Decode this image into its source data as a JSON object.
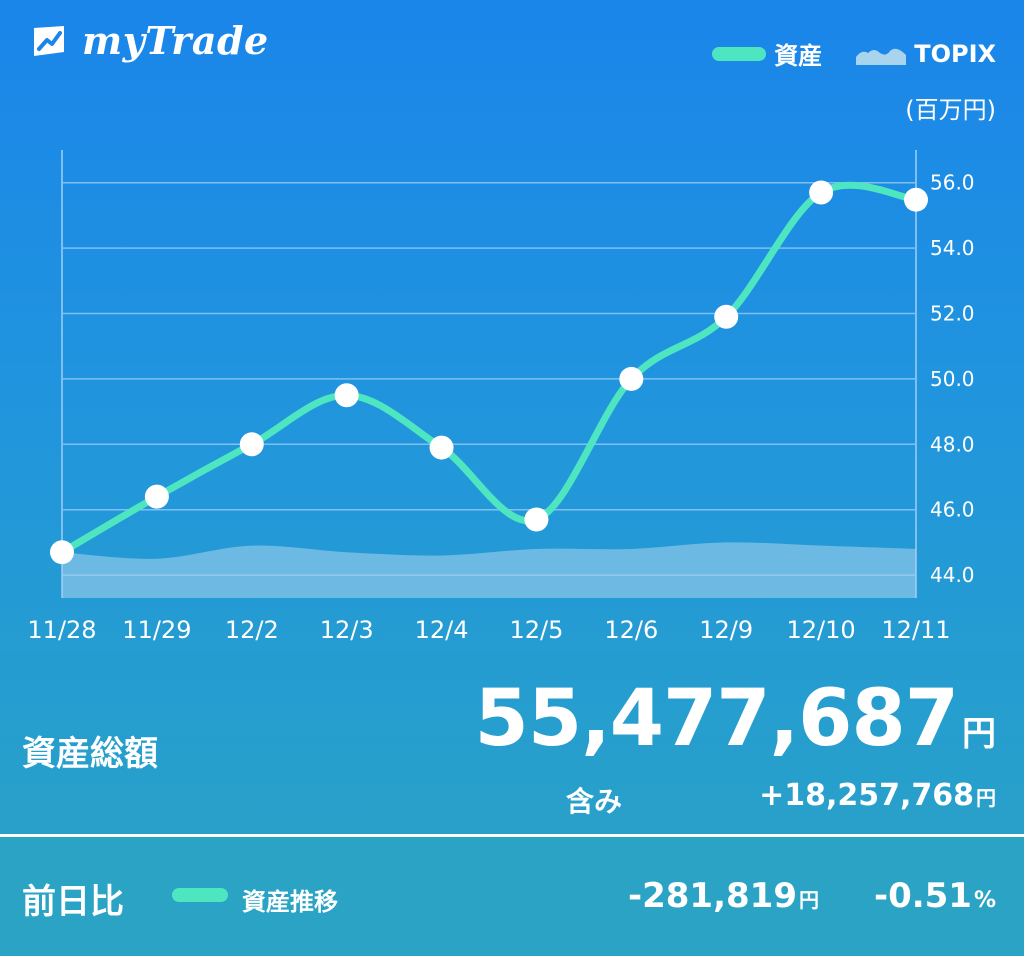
{
  "app": {
    "name": "myTrade"
  },
  "colors": {
    "asset_line": "#4ee6c0",
    "topix_area": "#a9d4ee",
    "grid": "#7fbff2"
  },
  "icons": {
    "logo": "mytrade-logo-icon"
  },
  "legend": {
    "asset": "資産",
    "topix": "TOPIX"
  },
  "unit": "(百万円)",
  "chart_data": {
    "type": "line",
    "categories": [
      "11/28",
      "11/29",
      "12/2",
      "12/3",
      "12/4",
      "12/5",
      "12/6",
      "12/9",
      "12/10",
      "12/11"
    ],
    "series": [
      {
        "name": "資産",
        "values": [
          44.7,
          46.4,
          48.0,
          49.5,
          47.9,
          45.7,
          50.0,
          51.9,
          55.7,
          55.48
        ]
      },
      {
        "name": "TOPIX",
        "values": [
          44.7,
          44.5,
          44.9,
          44.7,
          44.6,
          44.8,
          44.8,
          45.0,
          44.9,
          44.8
        ]
      }
    ],
    "ylim": [
      43.3,
      57.0
    ],
    "yticks": [
      44.0,
      46.0,
      48.0,
      50.0,
      52.0,
      54.0,
      56.0
    ],
    "ytick_labels": [
      "44.0",
      "46.0",
      "48.0",
      "50.0",
      "52.0",
      "54.0",
      "56.0"
    ],
    "grid": true
  },
  "summary": {
    "total_label": "資産総額",
    "total_value": "55,477,687",
    "yen": "円",
    "included_label": "含み",
    "included_value": "+18,257,768",
    "prev_label": "前日比",
    "series_label": "資産推移",
    "diff_value": "-281,819",
    "diff_percent": "-0.51",
    "percent_sign": "%"
  }
}
